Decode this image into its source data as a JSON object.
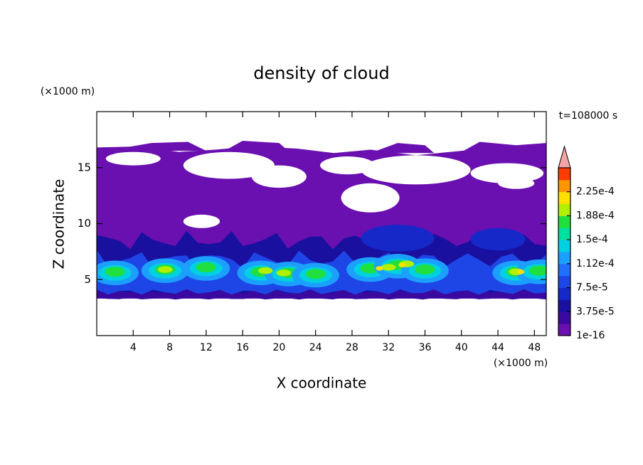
{
  "chart_data": {
    "type": "contour",
    "title": "density of cloud",
    "x_label": "X coordinate",
    "y_label": "Z coordinate",
    "x_unit": "(×1000 m)",
    "y_unit": "(×1000 m)",
    "annotation": "t=108000 s",
    "xlim": [
      0,
      49.3
    ],
    "ylim": [
      0,
      20
    ],
    "xticks": [
      4,
      8,
      12,
      16,
      20,
      24,
      28,
      32,
      36,
      40,
      44,
      48
    ],
    "yticks": [
      5,
      10,
      15
    ],
    "colorbar": {
      "lim": [
        1e-16,
        0.0002625
      ],
      "colors": [
        "#6a10b0",
        "#3a0aa0",
        "#1a10a0",
        "#1628c8",
        "#1e46e6",
        "#2070ff",
        "#1ca0ff",
        "#00d0e0",
        "#00e0a0",
        "#20e040",
        "#b0f000",
        "#ffe000",
        "#ff9600",
        "#ff3c00"
      ],
      "extend_color": "#f4a4a4",
      "ticks": [
        {
          "value": 1e-16,
          "label": "1e-16"
        },
        {
          "value": 3.75e-05,
          "label": "3.75e-5"
        },
        {
          "value": 7.5e-05,
          "label": "7.5e-5"
        },
        {
          "value": 0.0001125,
          "label": "1.12e-4"
        },
        {
          "value": 0.00015,
          "label": "1.5e-4"
        },
        {
          "value": 0.0001875,
          "label": "1.88e-4"
        },
        {
          "value": 0.000225,
          "label": "2.25e-4"
        }
      ]
    }
  }
}
